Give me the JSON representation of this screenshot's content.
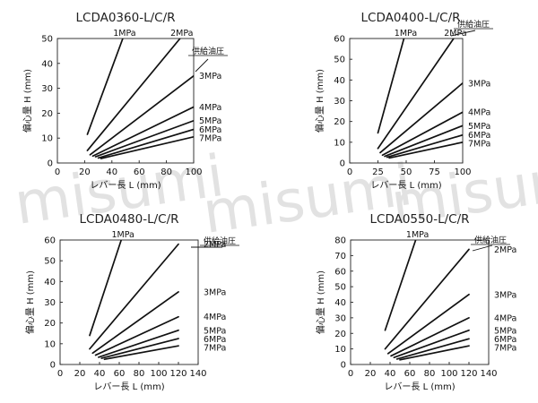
{
  "watermark": "misumi",
  "supply_label": "供給油圧",
  "chart_data": [
    {
      "type": "line",
      "title": "LCDA0360-L/C/R",
      "xlabel": "レバー長 L (mm)",
      "ylabel": "偏心量 H (mm)",
      "xlim": [
        0,
        100
      ],
      "ylim": [
        0,
        50
      ],
      "xticks": [
        0,
        20,
        40,
        60,
        80,
        100
      ],
      "yticks": [
        0,
        10,
        20,
        30,
        40,
        50
      ],
      "grid": false,
      "series": [
        {
          "name": "1MPa",
          "x": [
            22,
            48
          ],
          "y": [
            11.5,
            50
          ]
        },
        {
          "name": "2MPa",
          "x": [
            22,
            90
          ],
          "y": [
            5,
            50
          ]
        },
        {
          "name": "3MPa",
          "x": [
            24,
            100
          ],
          "y": [
            3.3,
            35
          ]
        },
        {
          "name": "4MPa",
          "x": [
            26,
            100
          ],
          "y": [
            2.8,
            22.5
          ]
        },
        {
          "name": "5MPa",
          "x": [
            28,
            100
          ],
          "y": [
            2.5,
            17
          ]
        },
        {
          "name": "6MPa",
          "x": [
            30,
            100
          ],
          "y": [
            2,
            13.5
          ]
        },
        {
          "name": "7MPa",
          "x": [
            32,
            100
          ],
          "y": [
            1.8,
            10.5
          ]
        }
      ]
    },
    {
      "type": "line",
      "title": "LCDA0400-L/C/R",
      "xlabel": "レバー長 L (mm)",
      "ylabel": "偏心量 H (mm)",
      "xlim": [
        0,
        100
      ],
      "ylim": [
        0,
        60
      ],
      "xticks": [
        0,
        25,
        50,
        75,
        100
      ],
      "yticks": [
        0,
        10,
        20,
        30,
        40,
        50,
        60
      ],
      "grid": false,
      "series": [
        {
          "name": "1MPa",
          "x": [
            25,
            48
          ],
          "y": [
            14.5,
            60
          ]
        },
        {
          "name": "2MPa",
          "x": [
            25,
            92
          ],
          "y": [
            7,
            60
          ]
        },
        {
          "name": "3MPa",
          "x": [
            27,
            100
          ],
          "y": [
            5,
            38.5
          ]
        },
        {
          "name": "4MPa",
          "x": [
            29,
            100
          ],
          "y": [
            3.8,
            24.5
          ]
        },
        {
          "name": "5MPa",
          "x": [
            31,
            100
          ],
          "y": [
            3.2,
            18
          ]
        },
        {
          "name": "6MPa",
          "x": [
            33,
            100
          ],
          "y": [
            2.8,
            13.5
          ]
        },
        {
          "name": "7MPa",
          "x": [
            35,
            100
          ],
          "y": [
            2.4,
            10
          ]
        }
      ]
    },
    {
      "type": "line",
      "title": "LCDA0480-L/C/R",
      "xlabel": "レバー長 L (mm)",
      "ylabel": "偏心量 H (mm)",
      "xlim": [
        0,
        140
      ],
      "ylim": [
        0,
        60
      ],
      "xticks": [
        0,
        20,
        40,
        60,
        80,
        100,
        120,
        140
      ],
      "yticks": [
        0,
        10,
        20,
        30,
        40,
        50,
        60
      ],
      "grid": false,
      "series": [
        {
          "name": "1MPa",
          "x": [
            30,
            62
          ],
          "y": [
            14,
            60
          ]
        },
        {
          "name": "2MPa",
          "x": [
            30,
            120
          ],
          "y": [
            7.5,
            58
          ]
        },
        {
          "name": "3MPa",
          "x": [
            33,
            120
          ],
          "y": [
            5.5,
            35
          ]
        },
        {
          "name": "4MPa",
          "x": [
            36,
            120
          ],
          "y": [
            4.5,
            23
          ]
        },
        {
          "name": "5MPa",
          "x": [
            39,
            120
          ],
          "y": [
            3.5,
            16.5
          ]
        },
        {
          "name": "6MPa",
          "x": [
            42,
            120
          ],
          "y": [
            3,
            12.5
          ]
        },
        {
          "name": "7MPa",
          "x": [
            45,
            120
          ],
          "y": [
            2.5,
            9
          ]
        }
      ]
    },
    {
      "type": "line",
      "title": "LCDA0550-L/C/R",
      "xlabel": "レバー長 L (mm)",
      "ylabel": "偏心量 H (mm)",
      "xlim": [
        0,
        140
      ],
      "ylim": [
        0,
        80
      ],
      "xticks": [
        0,
        20,
        40,
        60,
        80,
        100,
        120,
        140
      ],
      "yticks": [
        0,
        10,
        20,
        30,
        40,
        50,
        60,
        70,
        80
      ],
      "grid": false,
      "series": [
        {
          "name": "1MPa",
          "x": [
            35,
            66
          ],
          "y": [
            22,
            80
          ]
        },
        {
          "name": "2MPa",
          "x": [
            35,
            120
          ],
          "y": [
            10,
            74
          ]
        },
        {
          "name": "3MPa",
          "x": [
            38,
            120
          ],
          "y": [
            7,
            45
          ]
        },
        {
          "name": "4MPa",
          "x": [
            41,
            120
          ],
          "y": [
            5.5,
            30
          ]
        },
        {
          "name": "5MPa",
          "x": [
            44,
            120
          ],
          "y": [
            4.5,
            22
          ]
        },
        {
          "name": "6MPa",
          "x": [
            47,
            120
          ],
          "y": [
            3.5,
            16.5
          ]
        },
        {
          "name": "7MPa",
          "x": [
            50,
            120
          ],
          "y": [
            3,
            12
          ]
        }
      ]
    }
  ]
}
